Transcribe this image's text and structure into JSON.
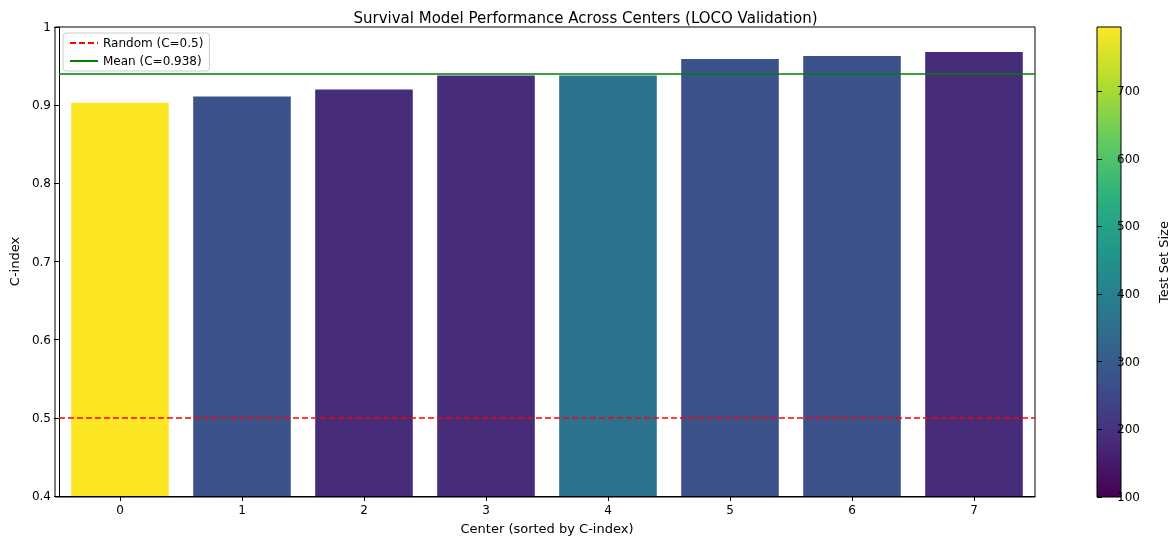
{
  "chart_data": {
    "type": "bar",
    "title": "Survival Model Performance Across Centers (LOCO Validation)",
    "xlabel": "Center (sorted by C-index)",
    "ylabel": "C-index",
    "clabel": "Test Set Size",
    "categories": [
      "0",
      "1",
      "2",
      "3",
      "4",
      "5",
      "6",
      "7"
    ],
    "values": [
      0.903,
      0.911,
      0.92,
      0.938,
      0.938,
      0.959,
      0.963,
      0.968
    ],
    "cvalues": [
      795,
      275,
      185,
      185,
      360,
      275,
      275,
      185
    ],
    "clim": [
      100,
      795
    ],
    "cticks": [
      100,
      200,
      300,
      400,
      500,
      600,
      700
    ],
    "ylim": [
      0.4,
      1.0
    ],
    "yticks": [
      0.4,
      0.5,
      0.6,
      0.7,
      0.8,
      0.9,
      1.0
    ],
    "ref_lines": [
      {
        "axis": "y",
        "value": 0.5,
        "label": "Random (C=0.5)",
        "color": "#ff0000",
        "line_style": "dashed"
      },
      {
        "axis": "y",
        "value": 0.938,
        "label": "Mean (C=0.938)",
        "color": "#008000",
        "line_style": "solid"
      }
    ],
    "legend": "top left",
    "grid": false
  }
}
